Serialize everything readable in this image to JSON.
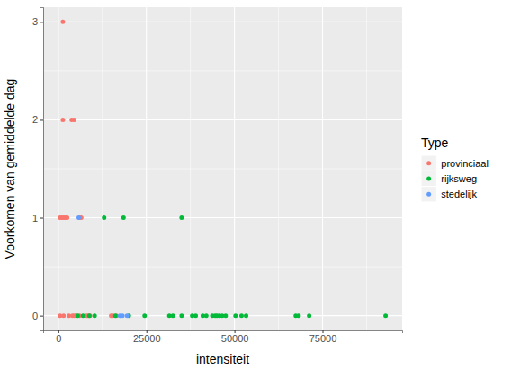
{
  "chart_data": {
    "type": "scatter",
    "x_label": "intensiteit",
    "y_label": "Voorkomen van gemiddelde dag",
    "legend_title": "Type",
    "legend": "right",
    "grid": true,
    "marker": "circle",
    "xlim": [
      -4300,
      97600
    ],
    "xticks": [
      0,
      25000,
      50000,
      75000
    ],
    "ylim": [
      -0.15,
      3.15
    ],
    "yticks": [
      0,
      1,
      2,
      3
    ],
    "series": [
      {
        "name": "provinciaal",
        "color": "#F8766D",
        "x": [
          1300,
          1300,
          3800,
          4500,
          500,
          1000,
          1500,
          2000,
          2500,
          6000,
          6500,
          500,
          1500,
          3000,
          4000,
          4500,
          5000,
          6000,
          8000,
          8500,
          9000,
          15000,
          15500,
          16500
        ],
        "values": [
          3,
          2,
          2,
          2,
          1,
          1,
          1,
          1,
          1,
          1,
          1,
          0,
          0,
          0,
          0,
          0,
          0,
          0,
          0,
          0,
          0,
          0,
          0,
          0
        ]
      },
      {
        "name": "rijksweg",
        "color": "#00BA38",
        "x": [
          13000,
          18500,
          35000,
          5500,
          7000,
          8800,
          10300,
          16200,
          20000,
          24500,
          31500,
          32500,
          35000,
          38000,
          39000,
          41000,
          42000,
          43700,
          44500,
          45000,
          45700,
          46500,
          47500,
          50300,
          52000,
          53300,
          67400,
          68200,
          71200,
          92900
        ],
        "values": [
          1,
          1,
          1,
          0,
          0,
          0,
          0,
          0,
          0,
          0,
          0,
          0,
          0,
          0,
          0,
          0,
          0,
          0,
          0,
          0,
          0,
          0,
          0,
          0,
          0,
          0,
          0,
          0,
          0,
          0
        ]
      },
      {
        "name": "stedelijk",
        "color": "#619CFF",
        "x": [
          5800,
          17500,
          18200,
          19500
        ],
        "values": [
          1,
          0,
          0,
          0
        ]
      }
    ]
  }
}
